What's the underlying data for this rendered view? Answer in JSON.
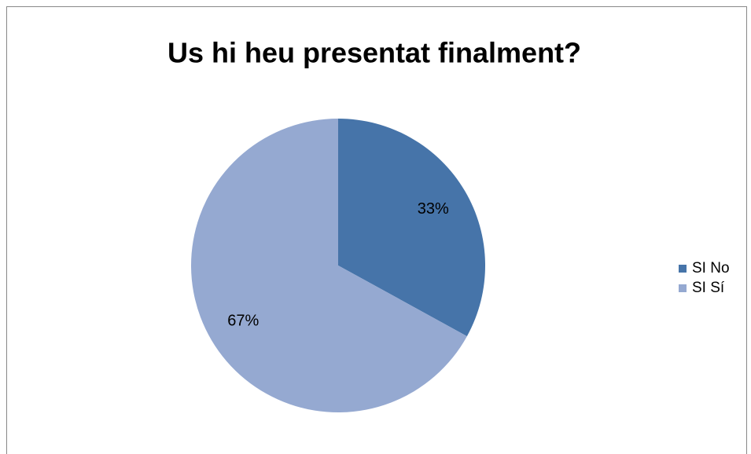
{
  "chart_data": {
    "type": "pie",
    "title": "Us hi heu presentat finalment?",
    "categories": [
      "SI No",
      "SI Sí"
    ],
    "values": [
      33,
      67
    ],
    "value_labels": [
      "33%",
      "67%"
    ],
    "colors": [
      "#4674a9",
      "#95a9d1"
    ],
    "legend": "right"
  }
}
